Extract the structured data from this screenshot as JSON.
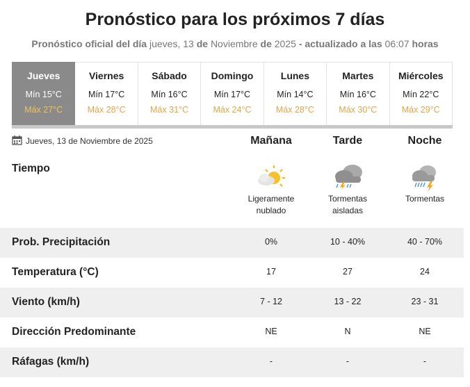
{
  "header": {
    "title": "Pronóstico para los próximos 7 días",
    "subtitle": [
      {
        "text": "Pronóstico oficial del día",
        "bold": true
      },
      {
        "text": "jueves, 13",
        "bold": false
      },
      {
        "text": "de",
        "bold": true
      },
      {
        "text": "Noviembre",
        "bold": false
      },
      {
        "text": "de",
        "bold": true
      },
      {
        "text": "2025",
        "bold": false
      },
      {
        "text": "- actualizado a las",
        "bold": true
      },
      {
        "text": "06:07",
        "bold": false
      },
      {
        "text": "horas",
        "bold": true
      }
    ]
  },
  "days": [
    {
      "name": "Jueves",
      "min": "Mín 15°C",
      "max": "Máx 27°C",
      "active": true
    },
    {
      "name": "Viernes",
      "min": "Mín 17°C",
      "max": "Máx 28°C",
      "active": false
    },
    {
      "name": "Sábado",
      "min": "Mín 16°C",
      "max": "Máx 31°C",
      "active": false
    },
    {
      "name": "Domingo",
      "min": "Mín 17°C",
      "max": "Máx 24°C",
      "active": false
    },
    {
      "name": "Lunes",
      "min": "Mín 14°C",
      "max": "Máx 28°C",
      "active": false
    },
    {
      "name": "Martes",
      "min": "Mín 16°C",
      "max": "Máx 30°C",
      "active": false
    },
    {
      "name": "Miércoles",
      "min": "Mín 22°C",
      "max": "Máx 29°C",
      "active": false
    }
  ],
  "date": "Jueves, 13 de Noviembre de 2025",
  "periods": [
    "Mañana",
    "Tarde",
    "Noche"
  ],
  "weather": {
    "label": "Tiempo",
    "conditions": [
      "Ligeramente nublado",
      "Tormentas aisladas",
      "Tormentas"
    ]
  },
  "rows": [
    {
      "label": "Prob. Precipitación",
      "values": [
        "0%",
        "10 - 40%",
        "40 - 70%"
      ]
    },
    {
      "label": "Temperatura (°C)",
      "values": [
        "17",
        "27",
        "24"
      ]
    },
    {
      "label": "Viento (km/h)",
      "values": [
        "7 - 12",
        "13 - 22",
        "23 - 31"
      ]
    },
    {
      "label": "Dirección Predominante",
      "values": [
        "NE",
        "N",
        "NE"
      ]
    },
    {
      "label": "Ráfagas (km/h)",
      "values": [
        "-",
        "-",
        "-"
      ]
    }
  ]
}
